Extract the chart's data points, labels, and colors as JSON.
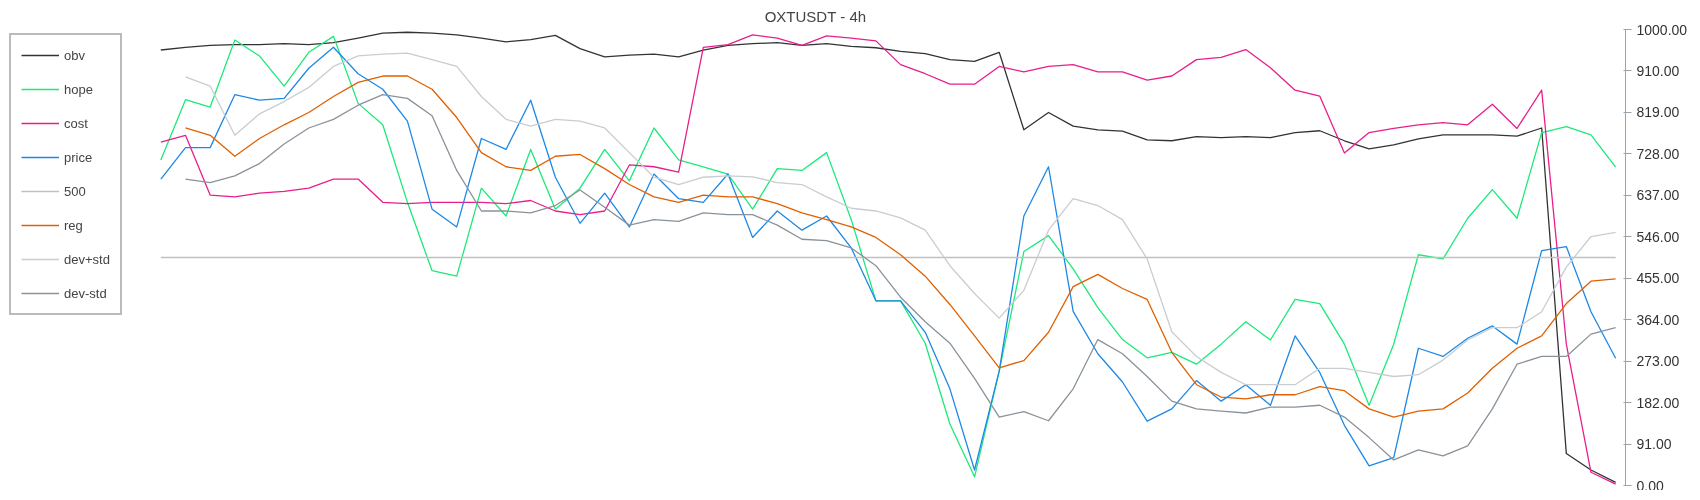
{
  "chart_data": {
    "type": "line",
    "title": "OXTUSDT - 4h",
    "categories": [
      null,
      null,
      null,
      null,
      null,
      null,
      null,
      null,
      null,
      null,
      null,
      null,
      null,
      null,
      null,
      null,
      null,
      null,
      null,
      null,
      null,
      null,
      null,
      null,
      null,
      null,
      null,
      null,
      null,
      null,
      null,
      null,
      null,
      null,
      null,
      null,
      null,
      null,
      null,
      null,
      null,
      null,
      null,
      null,
      null,
      null,
      null,
      null,
      null,
      null,
      null,
      null,
      null,
      null,
      null,
      null,
      null,
      null,
      null,
      null
    ],
    "ylim": [
      0,
      1000
    ],
    "yticks": [
      {
        "value": 0,
        "label": "0.00"
      },
      {
        "value": 91,
        "label": "91.00"
      },
      {
        "value": 182,
        "label": "182.00"
      },
      {
        "value": 273,
        "label": "273.00"
      },
      {
        "value": 364,
        "label": "364.00"
      },
      {
        "value": 455,
        "label": "455.00"
      },
      {
        "value": 546,
        "label": "546.00"
      },
      {
        "value": 637,
        "label": "637.00"
      },
      {
        "value": 728,
        "label": "728.00"
      },
      {
        "value": 819,
        "label": "819.00"
      },
      {
        "value": 910,
        "label": "910.00"
      },
      {
        "value": 1000,
        "label": "1000.00"
      }
    ],
    "grid": false,
    "legend": "left",
    "tick_labels": "y",
    "series": [
      {
        "name": "obv",
        "color": "#333333",
        "values": [
          955,
          961,
          965,
          967,
          967,
          969,
          967,
          971,
          981,
          992,
          994,
          992,
          988,
          981,
          973,
          978,
          987,
          958,
          940,
          944,
          946,
          940,
          955,
          965,
          969,
          971,
          965,
          969,
          963,
          960,
          952,
          947,
          934,
          930,
          950,
          780,
          818,
          788,
          780,
          777,
          758,
          756,
          765,
          763,
          765,
          763,
          774,
          778,
          756,
          738,
          747,
          760,
          769,
          769,
          769,
          766,
          784,
          70,
          34,
          7
        ]
      },
      {
        "name": "hope",
        "color": "#1de97a",
        "values": [
          714,
          846,
          830,
          977,
          942,
          876,
          950,
          985,
          838,
          791,
          621,
          471,
          459,
          652,
          591,
          737,
          606,
          652,
          737,
          668,
          784,
          714,
          699,
          683,
          606,
          695,
          691,
          730,
          583,
          405,
          405,
          312,
          135,
          19,
          251,
          513,
          548,
          475,
          390,
          320,
          280,
          292,
          266,
          310,
          359,
          319,
          408,
          399,
          310,
          176,
          310,
          506,
          497,
          586,
          649,
          586,
          774,
          787,
          769,
          698
        ]
      },
      {
        "name": "cost",
        "color": "#e91e8c",
        "values": [
          753,
          768,
          637,
          633,
          641,
          645,
          652,
          672,
          672,
          621,
          618,
          621,
          621,
          621,
          618,
          625,
          602,
          594,
          602,
          703,
          699,
          687,
          961,
          967,
          988,
          981,
          965,
          986,
          981,
          975,
          923,
          903,
          880,
          880,
          919,
          907,
          919,
          923,
          907,
          907,
          889,
          898,
          934,
          939,
          956,
          916,
          867,
          854,
          729,
          774,
          783,
          791,
          796,
          791,
          836,
          783,
          867,
          310,
          29,
          3
        ]
      },
      {
        "name": "price",
        "color": "#1e88e5",
        "values": [
          672,
          741,
          741,
          857,
          845,
          849,
          915,
          961,
          903,
          869,
          799,
          606,
          567,
          761,
          737,
          845,
          676,
          575,
          641,
          567,
          683,
          629,
          621,
          683,
          544,
          602,
          560,
          591,
          521,
          405,
          405,
          336,
          212,
          34,
          251,
          591,
          699,
          382,
          289,
          227,
          141,
          168,
          230,
          185,
          221,
          176,
          328,
          248,
          132,
          43,
          61,
          301,
          283,
          323,
          350,
          310,
          515,
          524,
          381,
          279
        ]
      },
      {
        "name": "500",
        "color": "#c0c0c0",
        "values": [
          500,
          500,
          500,
          500,
          500,
          500,
          500,
          500,
          500,
          500,
          500,
          500,
          500,
          500,
          500,
          500,
          500,
          500,
          500,
          500,
          500,
          500,
          500,
          500,
          500,
          500,
          500,
          500,
          500,
          500,
          500,
          500,
          500,
          500,
          500,
          500,
          500,
          500,
          500,
          500,
          500,
          500,
          500,
          500,
          500,
          500,
          500,
          500,
          500,
          500,
          500,
          500,
          500,
          500,
          500,
          500,
          500,
          500,
          500,
          500
        ]
      },
      {
        "name": "reg",
        "color": "#e06000",
        "values": [
          null,
          784,
          768,
          722,
          761,
          791,
          818,
          853,
          884,
          898,
          898,
          869,
          807,
          730,
          699,
          691,
          722,
          726,
          695,
          660,
          633,
          621,
          637,
          633,
          633,
          618,
          598,
          583,
          567,
          544,
          506,
          459,
          397,
          328,
          258,
          274,
          336,
          436,
          463,
          432,
          408,
          292,
          221,
          194,
          190,
          199,
          199,
          217,
          208,
          168,
          150,
          163,
          168,
          203,
          257,
          301,
          328,
          399,
          448,
          453
        ]
      },
      {
        "name": "dev+std",
        "color": "#c8cdd2",
        "values": [
          null,
          896,
          876,
          768,
          815,
          842,
          873,
          919,
          942,
          946,
          948,
          934,
          919,
          853,
          803,
          788,
          803,
          799,
          784,
          730,
          676,
          660,
          676,
          679,
          677,
          664,
          660,
          633,
          608,
          602,
          587,
          560,
          482,
          421,
          367,
          428,
          560,
          629,
          614,
          583,
          497,
          337,
          283,
          248,
          221,
          221,
          221,
          257,
          257,
          248,
          239,
          243,
          275,
          319,
          346,
          346,
          381,
          479,
          546,
          555
        ]
      },
      {
        "name": "dev-std",
        "color": "#8a9299",
        "values": [
          null,
          672,
          664,
          679,
          706,
          749,
          784,
          803,
          834,
          857,
          849,
          811,
          691,
          602,
          602,
          598,
          614,
          648,
          610,
          571,
          583,
          579,
          598,
          594,
          594,
          571,
          540,
          537,
          521,
          482,
          413,
          359,
          312,
          235,
          150,
          162,
          142,
          212,
          320,
          289,
          239,
          185,
          168,
          163,
          159,
          172,
          172,
          176,
          150,
          105,
          56,
          78,
          65,
          87,
          168,
          266,
          283,
          283,
          332,
          346
        ]
      }
    ]
  }
}
